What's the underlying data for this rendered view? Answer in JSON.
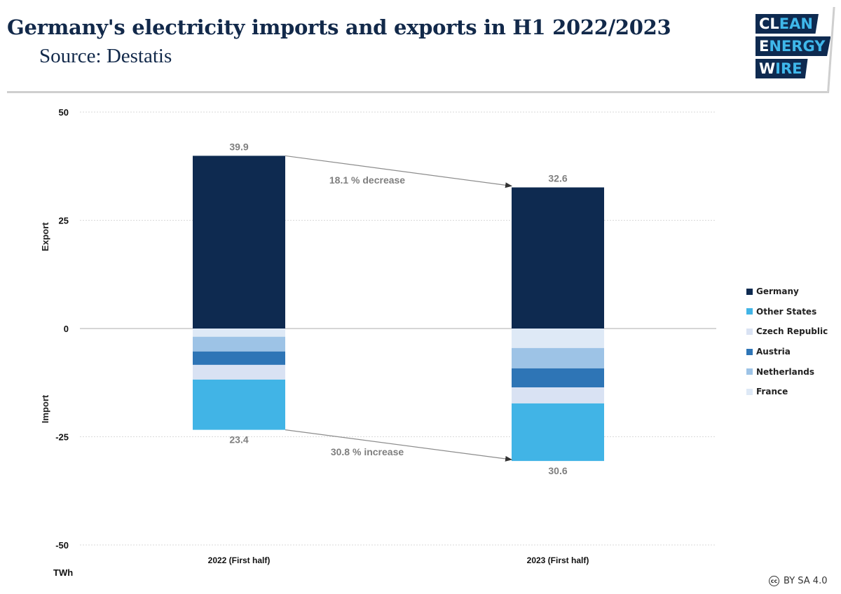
{
  "header": {
    "title": "Germany's electricity imports and exports in H1 2022/2023",
    "subtitle": "Source: Destatis",
    "logo": {
      "rows": [
        {
          "white": "CL",
          "blue": "EAN"
        },
        {
          "white": "E",
          "blue": "NERGY"
        },
        {
          "white": "W",
          "blue": "IRE"
        }
      ]
    }
  },
  "license": {
    "icon": "cc-icon",
    "icon_text": "cc",
    "text": "BY SA 4.0"
  },
  "colors": {
    "Germany": "#0e2a50",
    "Other States": "#41b4e6",
    "Czech Republic": "#d9e2f3",
    "Austria": "#2e75b6",
    "Netherlands": "#9dc3e6",
    "France": "#dee9f6"
  },
  "chart_data": {
    "type": "bar",
    "stacked": true,
    "title": "Germany's electricity imports and exports in H1 2022/2023",
    "subtitle": "Source: Destatis",
    "xlabel": "",
    "ylabel_top": "Export",
    "ylabel_bottom": "Import",
    "unit": "TWh",
    "ylim": [
      -50,
      50
    ],
    "yticks": [
      50,
      25,
      0,
      -25,
      -50
    ],
    "grid": true,
    "legend_position": "right",
    "categories": [
      "2022 (First half)",
      "2023 (First half)"
    ],
    "series": [
      {
        "name": "Germany",
        "values": [
          39.9,
          32.6
        ]
      },
      {
        "name": "France",
        "values": [
          -1.9,
          -4.5
        ]
      },
      {
        "name": "Netherlands",
        "values": [
          -3.4,
          -4.7
        ]
      },
      {
        "name": "Austria",
        "values": [
          -3.1,
          -4.4
        ]
      },
      {
        "name": "Czech Republic",
        "values": [
          -3.4,
          -3.7
        ]
      },
      {
        "name": "Other States",
        "values": [
          -11.6,
          -13.3
        ]
      }
    ],
    "legend": [
      "Germany",
      "Other States",
      "Czech Republic",
      "Austria",
      "Netherlands",
      "France"
    ],
    "totals": {
      "export": {
        "values": [
          39.9,
          32.6
        ],
        "labels": [
          "39.9",
          "32.6"
        ]
      },
      "import": {
        "values": [
          -23.4,
          -30.6
        ],
        "labels": [
          "23.4",
          "30.6"
        ]
      }
    },
    "annotations": [
      {
        "text": "18.1 % decrease",
        "from": [
          0,
          39.9
        ],
        "to": [
          1,
          32.6
        ]
      },
      {
        "text": "30.8 % increase",
        "from": [
          0,
          -23.4
        ],
        "to": [
          1,
          -30.6
        ]
      }
    ]
  }
}
